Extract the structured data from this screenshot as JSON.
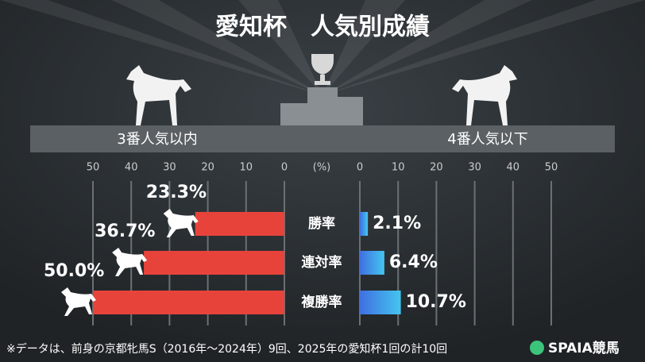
{
  "chart_data": {
    "type": "bar",
    "title": "愛知杯　人気別成績",
    "categories": [
      "勝率",
      "連対率",
      "複勝率"
    ],
    "series": [
      {
        "name": "3番人気以内",
        "color": "#e8433b",
        "gradient": [
          "#e8433b",
          "#f6d03f"
        ],
        "values": [
          23.3,
          36.7,
          50.0
        ],
        "value_labels": [
          "23.3%",
          "36.7%",
          "50.0%"
        ]
      },
      {
        "name": "4番人気以下",
        "color": "#3f6fe0",
        "gradient": [
          "#3f6fe0",
          "#44c6f0"
        ],
        "values": [
          2.1,
          6.4,
          10.7
        ],
        "value_labels": [
          "2.1%",
          "6.4%",
          "10.7%"
        ]
      }
    ],
    "xlim": [
      0,
      50
    ],
    "xticks": [
      0,
      10,
      20,
      30,
      40,
      50
    ],
    "unit_label": "(%)",
    "note": "※データは、前身の京都牝馬S（2016年～2024年）9回、2025年の愛知杯1回の計10回",
    "brand": "SPAIA競馬"
  }
}
